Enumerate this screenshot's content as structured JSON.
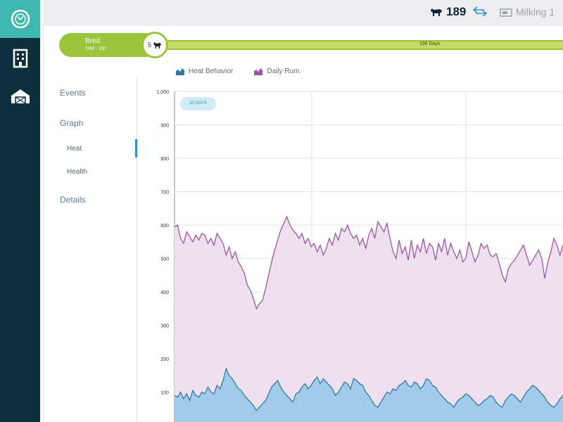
{
  "sidebar": {
    "logo_icon": "dairy-logo-icon",
    "items": [
      {
        "icon": "building-icon"
      },
      {
        "icon": "barn-icon"
      }
    ]
  },
  "topbar": {
    "animal_icon": "cow-icon",
    "animal_id": "189",
    "swap_icon": "swap-arrows-icon",
    "group_icon": "milking-group-icon",
    "group_label": "Milking 1"
  },
  "status": {
    "state": "Bred",
    "dim": "DIM · 197",
    "lactation": "5",
    "timeline_label": "196 Days",
    "colors": {
      "pill": "#9cc43b",
      "bar": "#c6dc6a"
    }
  },
  "nav": {
    "events": "Events",
    "graph": "Graph",
    "heat": "Heat",
    "health": "Health",
    "details": "Details"
  },
  "legend": {
    "heat_behavior": "Heat Behavior",
    "daily_rum": "Daily Rum."
  },
  "range_badge": "30 DAYS",
  "chart_data": {
    "type": "area",
    "ylim": [
      0,
      1000
    ],
    "yticks": [
      "1,000",
      "900",
      "800",
      "700",
      "600",
      "500",
      "400",
      "300",
      "200",
      "100"
    ],
    "grid": true,
    "series": [
      {
        "name": "Daily Rum.",
        "color": "#a052a6",
        "fill": "#efe0ef",
        "values": [
          595,
          600,
          560,
          545,
          580,
          565,
          550,
          570,
          555,
          575,
          570,
          545,
          560,
          540,
          575,
          560,
          545,
          510,
          535,
          500,
          520,
          490,
          475,
          455,
          420,
          405,
          380,
          350,
          365,
          375,
          410,
          450,
          490,
          525,
          555,
          585,
          605,
          625,
          600,
          585,
          575,
          560,
          575,
          545,
          560,
          535,
          545,
          520,
          540,
          510,
          530,
          560,
          540,
          575,
          555,
          590,
          580,
          600,
          575,
          560,
          570,
          540,
          560,
          530,
          570,
          590,
          560,
          610,
          595,
          580,
          605,
          560,
          520,
          500,
          555,
          515,
          535,
          495,
          555,
          500,
          540,
          520,
          560,
          515,
          545,
          535,
          495,
          545,
          520,
          560,
          510,
          545,
          520,
          500,
          525,
          490,
          500,
          550,
          520,
          490,
          510,
          545,
          530,
          540,
          510,
          505,
          515,
          485,
          450,
          430,
          470,
          485,
          495,
          510,
          525,
          540,
          510,
          480,
          495,
          510,
          525,
          500,
          440,
          490,
          520,
          560,
          540,
          510,
          540
        ]
      },
      {
        "name": "Heat Behavior",
        "color": "#2f79a8",
        "fill": "#a1cbe8",
        "values": [
          90,
          85,
          100,
          80,
          95,
          75,
          105,
          90,
          85,
          100,
          95,
          115,
          100,
          95,
          120,
          110,
          135,
          170,
          150,
          140,
          125,
          110,
          105,
          90,
          80,
          70,
          60,
          45,
          55,
          65,
          75,
          95,
          115,
          125,
          135,
          115,
          100,
          90,
          80,
          70,
          95,
          100,
          115,
          125,
          110,
          120,
          135,
          145,
          125,
          140,
          130,
          120,
          110,
          90,
          100,
          115,
          130,
          125,
          110,
          140,
          135,
          125,
          120,
          100,
          90,
          75,
          60,
          55,
          70,
          85,
          100,
          95,
          110,
          105,
          120,
          125,
          135,
          120,
          115,
          130,
          125,
          110,
          120,
          140,
          135,
          120,
          115,
          100,
          90,
          80,
          70,
          65,
          55,
          70,
          80,
          85,
          95,
          90,
          80,
          70,
          60,
          65,
          75,
          80,
          90,
          85,
          70,
          60,
          55,
          75,
          85,
          95,
          90,
          80,
          70,
          85,
          100,
          110,
          120,
          115,
          105,
          95,
          85,
          70,
          60,
          55,
          65,
          80,
          90
        ]
      }
    ]
  }
}
